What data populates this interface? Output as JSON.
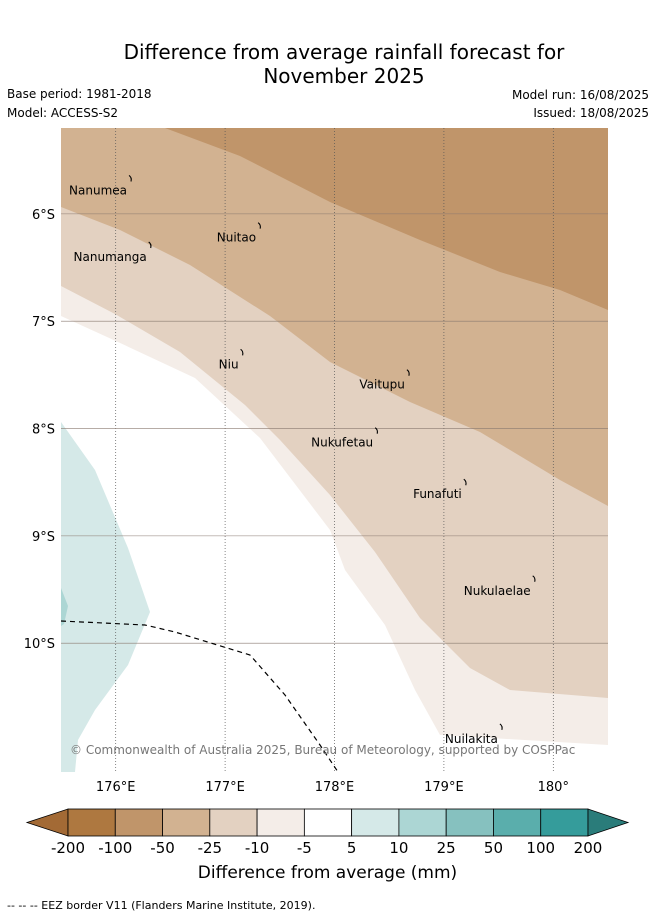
{
  "title_line1": "Difference from average rainfall forecast for",
  "title_line2": "November 2025",
  "meta": {
    "base_period": "Base period: 1981-2018",
    "model": "Model: ACCESS-S2",
    "model_run": "Model run: 16/08/2025",
    "issued": "Issued: 18/08/2025"
  },
  "map": {
    "lon_range": [
      175.5,
      180.5
    ],
    "lat_range": [
      -11.2,
      -5.2
    ],
    "lon_ticks": [
      {
        "value": 176,
        "label": "176°E"
      },
      {
        "value": 177,
        "label": "177°E"
      },
      {
        "value": 178,
        "label": "178°E"
      },
      {
        "value": 179,
        "label": "179°E"
      },
      {
        "value": 180,
        "label": "180°"
      }
    ],
    "lat_ticks": [
      {
        "value": -6,
        "label": "6°S"
      },
      {
        "value": -7,
        "label": "7°S"
      },
      {
        "value": -8,
        "label": "8°S"
      },
      {
        "value": -9,
        "label": "9°S"
      },
      {
        "value": -10,
        "label": "10°S"
      }
    ],
    "copyright": "© Commonwealth of Australia 2025, Bureau of Meteorology, supported by COSPPac",
    "islands": [
      {
        "name": "Nanumea",
        "lon": 176.14,
        "lat": -5.67
      },
      {
        "name": "Nuitao",
        "lon": 177.32,
        "lat": -6.11
      },
      {
        "name": "Nanumanga",
        "lon": 176.32,
        "lat": -6.29
      },
      {
        "name": "Niu",
        "lon": 177.16,
        "lat": -7.29
      },
      {
        "name": "Vaitupu",
        "lon": 178.68,
        "lat": -7.48
      },
      {
        "name": "Nukufetau",
        "lon": 178.39,
        "lat": -8.02
      },
      {
        "name": "Funafuti",
        "lon": 179.2,
        "lat": -8.5
      },
      {
        "name": "Nukulaelae",
        "lon": 179.83,
        "lat": -9.4
      },
      {
        "name": "Nuilakita",
        "lon": 179.53,
        "lat": -10.78
      }
    ]
  },
  "colorbar": {
    "title": "Difference from average (mm)",
    "ticks": [
      "-200",
      "-100",
      "-50",
      "-25",
      "-10",
      "-5",
      "5",
      "10",
      "25",
      "50",
      "100",
      "200"
    ],
    "colors": [
      "#a36a35",
      "#ae7840",
      "#c0956a",
      "#d2b291",
      "#e3d1c1",
      "#f4ede8",
      "#ffffff",
      "#d5e9e8",
      "#acd6d4",
      "#86c1bf",
      "#5aaeac",
      "#359c9b",
      "#2a7c7a"
    ]
  },
  "footer": "--  --  -- EEZ border V11 (Flanders Marine Institute, 2019)."
}
